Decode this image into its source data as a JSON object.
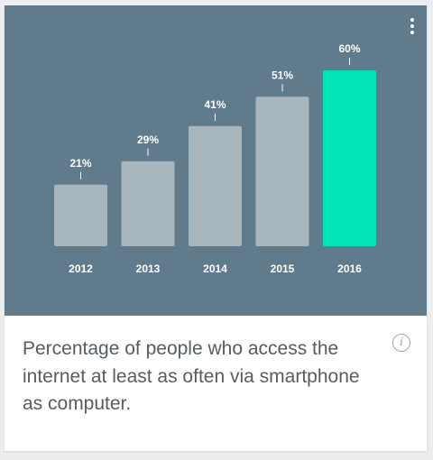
{
  "chart_data": {
    "type": "bar",
    "categories": [
      "2012",
      "2013",
      "2014",
      "2015",
      "2016"
    ],
    "values": [
      21,
      29,
      41,
      51,
      60
    ],
    "value_labels": [
      "21%",
      "29%",
      "41%",
      "51%",
      "60%"
    ],
    "unit": "%",
    "ylim": [
      0,
      60
    ],
    "highlight_index": 4,
    "grid": false,
    "colors": {
      "background": "#607b8b",
      "bar": "#a8b6be",
      "highlight_bar": "#00e5b6",
      "label": "#ffffff"
    }
  },
  "caption": {
    "text": "Percentage of people who access the internet at least as often via smartphone as computer."
  },
  "icons": {
    "menu": "more-vert-icon",
    "info": "info-icon",
    "info_glyph": "i"
  }
}
